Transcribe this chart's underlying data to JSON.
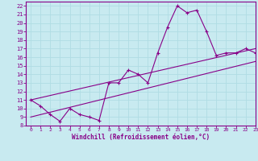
{
  "xlabel": "Windchill (Refroidissement éolien,°C)",
  "bg_color": "#c8eaf0",
  "grid_color": "#b0dce4",
  "line_color": "#880088",
  "xlim": [
    -0.5,
    23
  ],
  "ylim": [
    8,
    22.5
  ],
  "xticks": [
    0,
    1,
    2,
    3,
    4,
    5,
    6,
    7,
    8,
    9,
    10,
    11,
    12,
    13,
    14,
    15,
    16,
    17,
    18,
    19,
    20,
    21,
    22,
    23
  ],
  "yticks": [
    8,
    9,
    10,
    11,
    12,
    13,
    14,
    15,
    16,
    17,
    18,
    19,
    20,
    21,
    22
  ],
  "main_x": [
    0,
    1,
    2,
    3,
    4,
    5,
    6,
    7,
    8,
    9,
    10,
    11,
    12,
    13,
    14,
    15,
    16,
    17,
    18,
    19,
    20,
    21,
    22,
    23
  ],
  "main_y": [
    11,
    10.3,
    9.3,
    8.5,
    10.0,
    9.3,
    9.0,
    8.6,
    13.0,
    13.0,
    14.5,
    14.0,
    13.0,
    16.5,
    19.5,
    22.0,
    21.2,
    21.5,
    19.0,
    16.2,
    16.5,
    16.5,
    17.0,
    16.5
  ],
  "line1_x": [
    0,
    23
  ],
  "line1_y": [
    9.0,
    15.5
  ],
  "line2_x": [
    0,
    23
  ],
  "line2_y": [
    11.0,
    17.0
  ]
}
